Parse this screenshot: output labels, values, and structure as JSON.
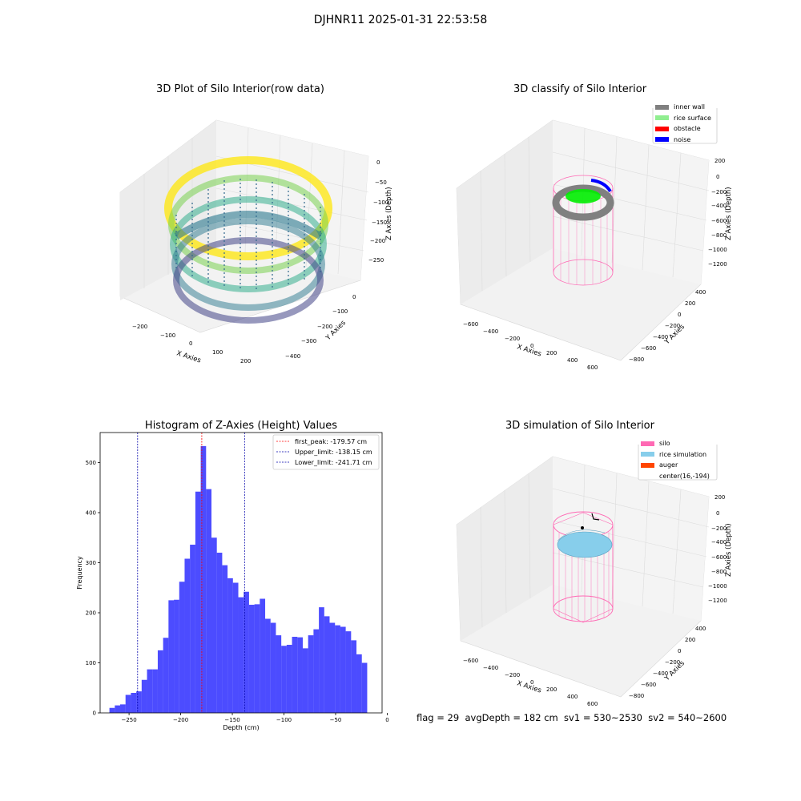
{
  "suptitle": "DJHNR11 2025-01-31 22:53:58",
  "panels": {
    "raw": {
      "title": "3D Plot of Silo Interior(row data)",
      "xlabel": "X Axies",
      "ylabel": "Y Axies",
      "zlabel": "Z Axies (Depth)",
      "xticks": [
        "-200",
        "-100",
        "0",
        "100",
        "200"
      ],
      "yticks": [
        "0",
        "-100",
        "-200",
        "-300",
        "-400"
      ],
      "zticks": [
        "0",
        "-50",
        "-100",
        "-150",
        "-200",
        "-250"
      ],
      "colormap": "viridis"
    },
    "classify": {
      "title": "3D classify of Silo Interior",
      "xlabel": "X Axies",
      "ylabel": "Y Axies",
      "zlabel": "Z Axies (Depth)",
      "xticks": [
        "-600",
        "-400",
        "-200",
        "0",
        "200",
        "400",
        "600"
      ],
      "yticks": [
        "400",
        "200",
        "0",
        "-200",
        "-400",
        "-600",
        "-800"
      ],
      "zticks": [
        "200",
        "0",
        "-200",
        "-400",
        "-600",
        "-800",
        "-1000",
        "-1200"
      ],
      "legend": [
        {
          "label": "inner wall",
          "color": "#808080"
        },
        {
          "label": "rice surface",
          "color": "#90ee90"
        },
        {
          "label": "obstacle",
          "color": "#ff0000"
        },
        {
          "label": "noise",
          "color": "#0000ff"
        }
      ]
    },
    "simulation": {
      "title": "3D simulation of Silo Interior",
      "xlabel": "X Axies",
      "ylabel": "Y Axies",
      "zlabel": "Z Axies (Depth)",
      "xticks": [
        "-600",
        "-400",
        "-200",
        "0",
        "200",
        "400",
        "600"
      ],
      "yticks": [
        "400",
        "200",
        "0",
        "-200",
        "-400",
        "-600",
        "-800"
      ],
      "zticks": [
        "200",
        "0",
        "-200",
        "-400",
        "-600",
        "-800",
        "-1000",
        "-1200"
      ],
      "legend": [
        {
          "label": "silo",
          "color": "#ff69b4"
        },
        {
          "label": "rice simulation",
          "color": "#87ceeb"
        },
        {
          "label": "auger",
          "color": "#ff4500"
        },
        {
          "label": "center(16,-194)",
          "color": ""
        }
      ]
    }
  },
  "chart_data": {
    "type": "bar",
    "title": "Histogram of Z-Axies (Height) Values",
    "xlabel": "Depth (cm)",
    "ylabel": "Frequency",
    "xlim": [
      -278,
      -5
    ],
    "ylim": [
      0,
      560
    ],
    "xticks": [
      -250,
      -200,
      -150,
      -100,
      -50,
      0
    ],
    "yticks": [
      0,
      100,
      200,
      300,
      400,
      500
    ],
    "bar_color": "#0000ff",
    "bin_start": -269,
    "bin_width": 5.2,
    "values": [
      10,
      15,
      17,
      36,
      40,
      43,
      66,
      87,
      87,
      125,
      150,
      225,
      226,
      262,
      308,
      336,
      442,
      533,
      447,
      350,
      320,
      295,
      269,
      260,
      231,
      242,
      216,
      217,
      228,
      188,
      180,
      155,
      134,
      136,
      152,
      151,
      129,
      155,
      167,
      211,
      193,
      180,
      175,
      172,
      163,
      145,
      117,
      100
    ],
    "lines": [
      {
        "label": "first_peak: -179.57 cm",
        "value": -179.57,
        "color": "#ff0000"
      },
      {
        "label": "Upper_limit: -138.15 cm",
        "value": -138.15,
        "color": "#0000aa"
      },
      {
        "label": "Lower_limit: -241.71 cm",
        "value": -241.71,
        "color": "#0000aa"
      }
    ],
    "legend_position": "top-right"
  },
  "footer": "flag = 29  avgDepth = 182 cm  sv1 = 530~2530  sv2 = 540~2600"
}
